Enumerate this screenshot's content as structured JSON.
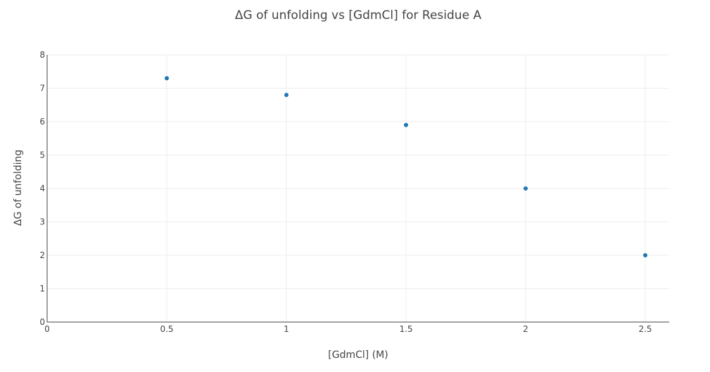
{
  "chart_data": {
    "type": "scatter",
    "title": "ΔG of unfolding vs [GdmCl] for Residue A",
    "xlabel": "[GdmCl] (M)",
    "ylabel": "ΔG of unfolding",
    "x": [
      0.5,
      1,
      1.5,
      2,
      2.5
    ],
    "y": [
      7.3,
      6.8,
      5.9,
      4.0,
      2.0
    ],
    "xlim": [
      0,
      2.6
    ],
    "ylim": [
      0,
      8
    ],
    "xticks": [
      0,
      0.5,
      1,
      1.5,
      2,
      2.5
    ],
    "xtick_labels": [
      "0",
      "0.5",
      "1",
      "1.5",
      "2",
      "2.5"
    ],
    "yticks": [
      0,
      1,
      2,
      3,
      4,
      5,
      6,
      7,
      8
    ],
    "ytick_labels": [
      "0",
      "1",
      "2",
      "3",
      "4",
      "5",
      "6",
      "7",
      "8"
    ],
    "grid": true,
    "legend": false,
    "marker_color": "#1f77b4"
  }
}
